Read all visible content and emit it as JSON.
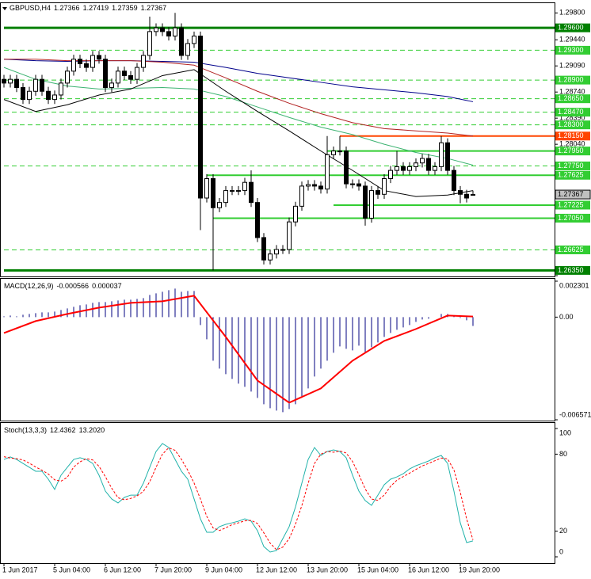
{
  "chart_data": [
    {
      "type": "candlestick",
      "title": "GBPUSD,H4",
      "categories": [
        "1 Jun 2017",
        null,
        null,
        null,
        null,
        null,
        null,
        null,
        "5 Jun 04:00",
        null,
        null,
        null,
        null,
        null,
        null,
        null,
        "6 Jun 12:00",
        null,
        null,
        null,
        null,
        null,
        null,
        null,
        "7 Jun 20:00",
        null,
        null,
        null,
        null,
        null,
        null,
        null,
        "9 Jun 04:00",
        null,
        null,
        null,
        null,
        null,
        null,
        null,
        "12 Jun 12:00",
        null,
        null,
        null,
        null,
        null,
        null,
        null,
        "13 Jun 20:00",
        null,
        null,
        null,
        null,
        null,
        null,
        null,
        "15 Jun 04:00",
        null,
        null,
        null,
        null,
        null,
        null,
        null,
        "16 Jun 12:00",
        null,
        null,
        null,
        null,
        null,
        null,
        null,
        "19 Jun 20:00",
        null,
        null
      ],
      "open": [
        1.2891,
        1.2886,
        1.2891,
        1.288,
        1.2864,
        1.2875,
        1.2891,
        1.2875,
        1.2864,
        1.287,
        1.2886,
        1.2902,
        1.2918,
        1.2912,
        1.2907,
        1.2923,
        1.2918,
        1.288,
        1.2886,
        1.2902,
        1.2896,
        1.2891,
        1.2907,
        1.2923,
        1.2955,
        1.296,
        1.2955,
        1.2949,
        1.296,
        1.2923,
        1.2939,
        1.2949,
        1.2732,
        1.2758,
        1.2719,
        1.2726,
        1.2742,
        1.2742,
        1.2742,
        1.2753,
        1.2726,
        1.2679,
        1.2649,
        1.2657,
        1.2663,
        1.2663,
        1.27,
        1.2721,
        1.2748,
        1.275,
        1.2748,
        1.2744,
        1.279,
        1.2795,
        1.2795,
        1.2751,
        1.2751,
        1.2748,
        1.2705,
        1.2742,
        1.2737,
        1.2758,
        1.2769,
        1.2774,
        1.2769,
        1.2774,
        1.2779,
        1.2785,
        1.2769,
        1.2774,
        1.2806,
        1.2769,
        1.2742,
        1.2737,
        1.27366
      ],
      "high": [
        1.2897,
        1.2897,
        1.2897,
        1.2886,
        1.2881,
        1.2897,
        1.2897,
        1.2881,
        1.2876,
        1.2892,
        1.2908,
        1.2924,
        1.2924,
        1.2918,
        1.2929,
        1.2929,
        1.2924,
        1.2892,
        1.2908,
        1.2908,
        1.2902,
        1.2913,
        1.2929,
        1.2975,
        1.2966,
        1.2966,
        1.2961,
        1.298,
        1.2966,
        1.2945,
        1.2955,
        1.2955,
        1.2764,
        1.2764,
        1.2732,
        1.2748,
        1.2748,
        1.2748,
        1.2759,
        1.2769,
        1.2732,
        1.2685,
        1.2663,
        1.2669,
        1.2669,
        1.2706,
        1.2727,
        1.2754,
        1.2756,
        1.2756,
        1.2754,
        1.2815,
        1.2801,
        1.2815,
        1.2801,
        1.2757,
        1.2757,
        1.2754,
        1.2748,
        1.2748,
        1.2764,
        1.2775,
        1.2795,
        1.278,
        1.278,
        1.2785,
        1.2791,
        1.2791,
        1.278,
        1.2815,
        1.2812,
        1.2775,
        1.2748,
        1.2743,
        1.27419
      ],
      "low": [
        1.288,
        1.288,
        1.2874,
        1.2858,
        1.2858,
        1.2869,
        1.2869,
        1.2858,
        1.2858,
        1.2864,
        1.288,
        1.2896,
        1.2906,
        1.2901,
        1.2901,
        1.2912,
        1.2874,
        1.2874,
        1.288,
        1.289,
        1.2885,
        1.2885,
        1.2901,
        1.2917,
        1.2949,
        1.2949,
        1.2943,
        1.2943,
        1.2917,
        1.2917,
        1.2933,
        1.2689,
        1.2726,
        1.2635,
        1.2713,
        1.272,
        1.2736,
        1.2736,
        1.2736,
        1.272,
        1.2673,
        1.2643,
        1.2643,
        1.2651,
        1.2657,
        1.2657,
        1.2694,
        1.2715,
        1.2742,
        1.2742,
        1.2738,
        1.2738,
        1.2784,
        1.2789,
        1.2745,
        1.2745,
        1.2742,
        1.2695,
        1.2699,
        1.2731,
        1.2731,
        1.2752,
        1.2763,
        1.2763,
        1.2763,
        1.2768,
        1.2773,
        1.2763,
        1.2763,
        1.2768,
        1.2763,
        1.2736,
        1.2725,
        1.2726,
        1.27359
      ],
      "close": [
        1.2886,
        1.2891,
        1.288,
        1.2864,
        1.2875,
        1.2891,
        1.2875,
        1.2864,
        1.287,
        1.2886,
        1.2902,
        1.2918,
        1.2912,
        1.2907,
        1.2923,
        1.2918,
        1.288,
        1.2886,
        1.2902,
        1.2896,
        1.2891,
        1.2907,
        1.2923,
        1.2955,
        1.296,
        1.2955,
        1.2949,
        1.296,
        1.2923,
        1.2939,
        1.2949,
        1.2732,
        1.2758,
        1.2719,
        1.2726,
        1.2742,
        1.2742,
        1.2742,
        1.2753,
        1.2726,
        1.2679,
        1.2649,
        1.2657,
        1.2663,
        1.2663,
        1.27,
        1.2721,
        1.2748,
        1.275,
        1.2748,
        1.2744,
        1.279,
        1.2795,
        1.2795,
        1.2751,
        1.2751,
        1.2748,
        1.2705,
        1.2742,
        1.2737,
        1.2758,
        1.2769,
        1.2774,
        1.2769,
        1.2774,
        1.2779,
        1.2785,
        1.2769,
        1.2774,
        1.2806,
        1.2769,
        1.2742,
        1.2737,
        1.2732,
        1.27367
      ],
      "ylim": [
        1.2628,
        1.2992
      ],
      "yticks": [
        {
          "value": 1.298,
          "label": "1.29800"
        },
        {
          "value": 1.2944,
          "label": "1.29440"
        },
        {
          "value": 1.2909,
          "label": "1.29090"
        },
        {
          "value": 1.2874,
          "label": "1.28740"
        },
        {
          "value": 1.2839,
          "label": "1.28390"
        },
        {
          "value": 1.2804,
          "label": "1.28040"
        },
        {
          "value": 1.2628,
          "label": "1.26280"
        }
      ],
      "series": [
        {
          "color": "#00008b",
          "x": [
            0,
            5,
            10,
            15,
            20,
            25,
            30,
            35,
            40,
            45,
            50,
            55,
            60,
            65,
            70,
            74
          ],
          "values": [
            1.2918,
            1.2916,
            1.2915,
            1.2916,
            1.2916,
            1.2915,
            1.2914,
            1.2907,
            1.2899,
            1.2893,
            1.2887,
            1.2881,
            1.2877,
            1.2873,
            1.2868,
            1.2861
          ]
        },
        {
          "color": "#b22222",
          "x": [
            0,
            5,
            10,
            15,
            20,
            25,
            30,
            35,
            40,
            45,
            50,
            55,
            60,
            65,
            70,
            74
          ],
          "values": [
            1.2918,
            1.2918,
            1.2916,
            1.2916,
            1.2916,
            1.2914,
            1.291,
            1.2893,
            1.2875,
            1.2859,
            1.2845,
            1.2833,
            1.2825,
            1.2822,
            1.2819,
            1.2815
          ]
        },
        {
          "color": "#3cb371",
          "x": [
            0,
            5,
            10,
            15,
            20,
            25,
            30,
            35,
            40,
            45,
            50,
            55,
            60,
            65,
            70,
            74
          ],
          "values": [
            1.2907,
            1.2891,
            1.2882,
            1.2878,
            1.2879,
            1.288,
            1.2878,
            1.2868,
            1.2854,
            1.284,
            1.2827,
            1.2817,
            1.2804,
            1.2793,
            1.2785,
            1.2776
          ]
        },
        {
          "color": "#000000",
          "x": [
            0,
            5,
            10,
            15,
            20,
            25,
            30,
            35,
            40,
            45,
            50,
            55,
            60,
            65,
            70,
            74
          ],
          "values": [
            1.2864,
            1.2848,
            1.2857,
            1.287,
            1.2878,
            1.2896,
            1.2904,
            1.2875,
            1.2848,
            1.2822,
            1.2795,
            1.2769,
            1.2742,
            1.2734,
            1.2736,
            1.2742
          ]
        }
      ],
      "levels": [
        {
          "value": 1.296,
          "label": "1.29600",
          "color": "#008000",
          "style": "thick",
          "from": 0
        },
        {
          "value": 1.293,
          "label": "1.29300",
          "color": "#32cd32",
          "style": "dashed",
          "from": 0
        },
        {
          "value": 1.289,
          "label": "1.28900",
          "color": "#32cd32",
          "style": "dashed",
          "from": 0
        },
        {
          "value": 1.2865,
          "label": "1.28650",
          "color": "#32cd32",
          "style": "dashed",
          "from": 0
        },
        {
          "value": 1.2847,
          "label": "1.28470",
          "color": "#32cd32",
          "style": "dashed",
          "from": 0
        },
        {
          "value": 1.283,
          "label": "1.28300",
          "color": "#32cd32",
          "style": "dashed",
          "from": 0
        },
        {
          "value": 1.2815,
          "label": "1.28150",
          "color": "#ff4500",
          "style": "solid",
          "from": 53
        },
        {
          "value": 1.2795,
          "label": "1.27950",
          "color": "#32cd32",
          "style": "solid",
          "from": 51
        },
        {
          "value": 1.2775,
          "label": "1.27750",
          "color": "#32cd32",
          "style": "dashed",
          "from": 0
        },
        {
          "value": 1.27625,
          "label": "1.27625",
          "color": "#32cd32",
          "style": "solid",
          "from": 32
        },
        {
          "value": 1.27225,
          "label": "1.27225",
          "color": "#32cd32",
          "style": "solid",
          "from": 52
        },
        {
          "value": 1.2705,
          "label": "1.27050",
          "color": "#32cd32",
          "style": "solid",
          "from": 33
        },
        {
          "value": 1.26625,
          "label": "1.26625",
          "color": "#32cd32",
          "style": "dashed",
          "from": 0
        },
        {
          "value": 1.2635,
          "label": "1.26350",
          "color": "#008000",
          "style": "thick",
          "from": 0
        }
      ]
    },
    {
      "type": "macd",
      "title": "MACD(12,26,9)",
      "values": [
        5.1e-05,
        0.000101,
        5.1e-05,
        0.000152,
        0.000203,
        0.000253,
        0.000304,
        0.000304,
        0.000355,
        0.000456,
        0.000558,
        0.000659,
        0.00076,
        0.000811,
        0.000913,
        0.000963,
        0.000963,
        0.001014,
        0.001065,
        0.001115,
        0.001115,
        0.001166,
        0.001217,
        0.00142,
        0.001521,
        0.001622,
        0.001724,
        0.001825,
        0.001622,
        0.001673,
        0.001673,
        -0.000507,
        -0.00142,
        -0.002788,
        -0.003295,
        -0.00365,
        -0.003954,
        -0.004259,
        -0.004461,
        -0.004765,
        -0.005171,
        -0.005577,
        -0.00583,
        -0.005982,
        -0.006084,
        -0.005881,
        -0.005577,
        -0.00507,
        -0.004563,
        -0.003802,
        -0.003295,
        -0.002788,
        -0.002281,
        -0.001876,
        -0.002028,
        -0.002129,
        -0.001825,
        -0.002281,
        -0.001927,
        -0.001622,
        -0.001267,
        -0.001014,
        -0.000811,
        -0.000659,
        -0.000507,
        -0.000304,
        -0.000152,
        -0.000101,
        0,
        0.000203,
        0.000203,
        0.000101,
        -5.1e-05,
        -0.000203,
        -0.000566
      ],
      "color": "#000080",
      "signal": {
        "color": "#ff0000",
        "x": [
          0,
          5,
          10,
          15,
          20,
          25,
          30,
          35,
          40,
          45,
          50,
          55,
          60,
          65,
          70,
          74
        ],
        "values": [
          -0.001014,
          -0.000253,
          0.000203,
          0.000608,
          0.000913,
          0.001014,
          0.001369,
          -0.001267,
          -0.004056,
          -0.005475,
          -0.004563,
          -0.002788,
          -0.001521,
          -0.00076,
          0.000101,
          3.7e-05
        ]
      },
      "ylim": [
        -0.006571,
        0.002301
      ],
      "yticks": [
        0.002301,
        {
          "value": 0,
          "label": "0.00"
        },
        -0.006571
      ]
    },
    {
      "type": "stochastic",
      "title": "Stoch(13,3,3)",
      "series": [
        {
          "color": "#20b2aa",
          "values": [
            75.9,
            77.8,
            75.9,
            72.8,
            69.8,
            66.7,
            66.7,
            60.5,
            52.5,
            63.6,
            69.8,
            75.9,
            77.2,
            75.9,
            72.8,
            63.6,
            51.2,
            45.1,
            42.0,
            46.3,
            48.1,
            48.1,
            57.4,
            69.8,
            82.1,
            88.3,
            85.2,
            75.9,
            66.7,
            60.5,
            45.1,
            29.6,
            19.1,
            19.1,
            23.5,
            25.3,
            26.5,
            27.8,
            29.6,
            27.8,
            20.4,
            8.0,
            3.7,
            4.9,
            14.2,
            23.5,
            38.9,
            57.4,
            75.9,
            85.2,
            79.0,
            82.1,
            83.3,
            82.1,
            77.2,
            63.6,
            51.2,
            43.8,
            40.1,
            48.1,
            56.2,
            60.5,
            62.3,
            64.8,
            68.5,
            71.0,
            72.8,
            74.7,
            77.2,
            79.0,
            72.8,
            51.2,
            26.5,
            11.1,
            12.4362
          ]
        },
        {
          "color": "#ff0000",
          "dashed": true,
          "last_label": "13.2020",
          "values": [
            78,
            77,
            76.5,
            75.5,
            73,
            70,
            67.5,
            64.5,
            60,
            59,
            62,
            70,
            74,
            76.5,
            75.5,
            70.5,
            62.5,
            53.5,
            46,
            44.5,
            45.5,
            47.5,
            51,
            58.5,
            69.8,
            80,
            85,
            83,
            76,
            67.5,
            57.5,
            45,
            31.5,
            22.5,
            20.5,
            22.6,
            25.1,
            26.5,
            28,
            28.4,
            26,
            18.7,
            10.7,
            5.5,
            7.6,
            14.2,
            25.5,
            39.9,
            57.4,
            72.8,
            80,
            82.1,
            81.5,
            82.5,
            80.9,
            74.3,
            64,
            52.9,
            45,
            44,
            48.1,
            55,
            59.7,
            62.5,
            65.2,
            68.1,
            70.8,
            72.8,
            74.9,
            77,
            76.3,
            67.7,
            50.2,
            29.6,
            13.202
          ]
        }
      ],
      "ylim": [
        0,
        100
      ],
      "yticks": [
        100,
        80,
        20,
        0
      ]
    }
  ]
}
